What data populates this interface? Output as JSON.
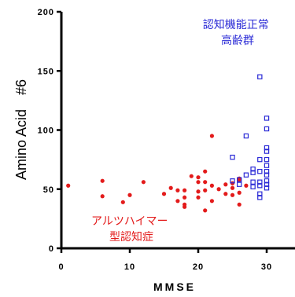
{
  "chart_data": {
    "type": "scatter",
    "xlabel": "MMSE",
    "ylabel": "Amino Acid　#6",
    "xlim": [
      0,
      35
    ],
    "ylim": [
      0,
      200
    ],
    "xticks": [
      "0",
      "10",
      "20",
      "30"
    ],
    "yticks": [
      "0",
      "50",
      "100",
      "150",
      "200"
    ],
    "grid": false,
    "series": [
      {
        "name": "アルツハイマー型認知症",
        "marker": "filled-circle",
        "color": "#e31b1b",
        "points": [
          [
            1,
            53
          ],
          [
            6,
            57
          ],
          [
            6,
            44
          ],
          [
            9,
            39
          ],
          [
            10,
            45
          ],
          [
            12,
            56
          ],
          [
            15,
            46
          ],
          [
            16,
            51
          ],
          [
            17,
            49
          ],
          [
            17,
            40
          ],
          [
            18,
            43
          ],
          [
            18,
            49
          ],
          [
            18,
            37
          ],
          [
            18,
            35
          ],
          [
            19,
            61
          ],
          [
            20,
            60
          ],
          [
            20,
            56
          ],
          [
            20,
            48
          ],
          [
            20,
            43
          ],
          [
            21,
            65
          ],
          [
            21,
            56
          ],
          [
            21,
            49
          ],
          [
            21,
            32
          ],
          [
            22,
            95
          ],
          [
            22,
            53
          ],
          [
            22,
            40
          ],
          [
            23,
            50
          ],
          [
            24,
            54
          ],
          [
            24,
            46
          ],
          [
            25,
            45
          ],
          [
            25,
            55
          ],
          [
            25,
            51
          ],
          [
            26,
            59
          ],
          [
            26,
            47
          ],
          [
            26,
            37
          ],
          [
            26,
            58
          ],
          [
            27,
            53
          ]
        ]
      },
      {
        "name": "認知機能正常高齢群",
        "marker": "open-square",
        "color": "#2b2bd6",
        "points": [
          [
            25,
            77
          ],
          [
            25,
            57
          ],
          [
            26,
            58
          ],
          [
            26,
            54
          ],
          [
            27,
            95
          ],
          [
            27,
            62
          ],
          [
            28,
            67
          ],
          [
            28,
            64
          ],
          [
            28,
            56
          ],
          [
            28,
            52
          ],
          [
            29,
            145
          ],
          [
            29,
            75
          ],
          [
            29,
            65
          ],
          [
            29,
            56
          ],
          [
            29,
            53
          ],
          [
            29,
            46
          ],
          [
            29,
            43
          ],
          [
            30,
            110
          ],
          [
            30,
            101
          ],
          [
            30,
            85
          ],
          [
            30,
            82
          ],
          [
            30,
            75
          ],
          [
            30,
            70
          ],
          [
            30,
            65
          ],
          [
            30,
            62
          ],
          [
            30,
            57
          ],
          [
            30,
            54
          ],
          [
            30,
            51
          ]
        ]
      }
    ],
    "annotations": [
      {
        "text_lines": [
          "認知機能正常",
          "高齢群"
        ],
        "color": "#2b2bd6"
      },
      {
        "text_lines": [
          "アルツハイマー",
          "型認知症"
        ],
        "color": "#e31b1b"
      }
    ]
  }
}
